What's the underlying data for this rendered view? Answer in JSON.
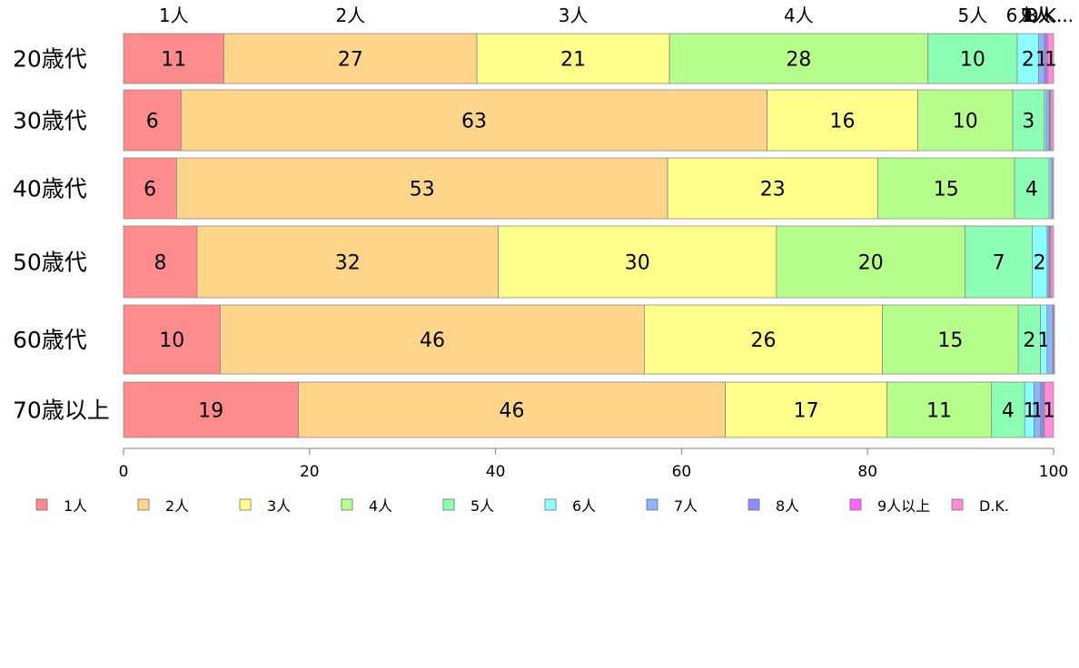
{
  "chart_data": {
    "type": "bar",
    "orientation": "horizontal",
    "stacked": true,
    "title": "",
    "xlabel": "",
    "ylabel": "",
    "xlim": [
      0,
      100
    ],
    "x_ticks": [
      0,
      20,
      40,
      60,
      80,
      100
    ],
    "legend_position": "bottom",
    "top_labels": [
      "1人",
      "2人",
      "3人",
      "4人",
      "5人",
      "6人",
      "7人",
      "8人",
      "9人...",
      "D.K..."
    ],
    "categories": [
      "20歳代",
      "30歳代",
      "40歳代",
      "50歳代",
      "60歳代",
      "70歳以上"
    ],
    "series": [
      {
        "name": "1人",
        "color": "#ff8c8c",
        "values": [
          10.8,
          6.2,
          5.7,
          7.9,
          10.4,
          18.8
        ]
      },
      {
        "name": "2人",
        "color": "#ffd58c",
        "values": [
          27.2,
          63.0,
          52.8,
          32.4,
          45.6,
          45.9
        ]
      },
      {
        "name": "3人",
        "color": "#ffff8c",
        "values": [
          20.7,
          16.2,
          22.6,
          29.9,
          25.6,
          17.4
        ]
      },
      {
        "name": "4人",
        "color": "#b6ff8c",
        "values": [
          27.8,
          10.2,
          14.7,
          20.3,
          14.6,
          11.2
        ]
      },
      {
        "name": "5人",
        "color": "#8cffb4",
        "values": [
          9.6,
          3.4,
          3.7,
          7.2,
          2.4,
          3.6
        ]
      },
      {
        "name": "6人",
        "color": "#8cffff",
        "values": [
          2.3,
          0.2,
          0.2,
          1.6,
          0.7,
          1.0
        ]
      },
      {
        "name": "7人",
        "color": "#8cb4ff",
        "values": [
          0.6,
          0.3,
          0.2,
          0.2,
          0.6,
          0.7
        ]
      },
      {
        "name": "8人",
        "color": "#8c8cff",
        "values": [
          0.2,
          0.1,
          0.0,
          0.1,
          0.1,
          0.3
        ]
      },
      {
        "name": "9人以上",
        "color": "#ff66ff",
        "values": [
          0.2,
          0.1,
          0.0,
          0.1,
          0.1,
          0.1
        ]
      },
      {
        "name": "D.K.",
        "color": "#ff8cd9",
        "values": [
          0.6,
          0.3,
          0.1,
          0.3,
          0.0,
          1.0
        ]
      }
    ],
    "data_labels": [
      [
        "11",
        "27",
        "21",
        "28",
        "10",
        "2",
        "1",
        "",
        "",
        "1"
      ],
      [
        "6",
        "63",
        "16",
        "10",
        "3",
        "",
        "",
        "",
        "",
        ""
      ],
      [
        "6",
        "53",
        "23",
        "15",
        "4",
        "",
        "",
        "",
        "",
        ""
      ],
      [
        "8",
        "32",
        "30",
        "20",
        "7",
        "2",
        "",
        "",
        "",
        ""
      ],
      [
        "10",
        "46",
        "26",
        "15",
        "2",
        "1",
        "",
        "",
        "",
        ""
      ],
      [
        "19",
        "46",
        "17",
        "11",
        "4",
        "1",
        "1",
        "",
        "",
        "1"
      ]
    ]
  }
}
